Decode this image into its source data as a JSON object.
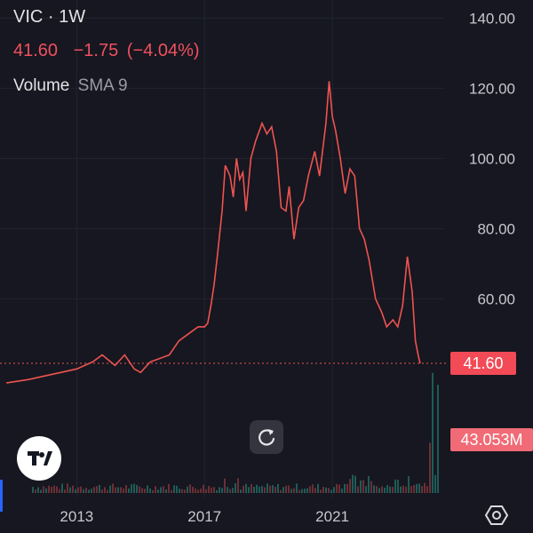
{
  "header": {
    "symbol": "VIC · 1W",
    "last": "41.60",
    "change": "−1.75",
    "change_pct": "(−4.04%)",
    "volume_label": "Volume",
    "sma_label": "SMA 9"
  },
  "price_tag": "41.60",
  "volume_tag": "43.053M",
  "colors": {
    "up": "#26a69a",
    "down": "#ef5350",
    "background": "#161720",
    "accent": "#2962ff"
  },
  "icons": {
    "logo": "tradingview-logo",
    "reset": "reset-chart-icon",
    "settings": "settings-gear-icon"
  },
  "chart_data": {
    "type": "line",
    "title": "VIC · 1W",
    "x_ticks": [
      "2013",
      "2017",
      "2021"
    ],
    "y_ticks": [
      "140.00",
      "120.00",
      "100.00",
      "80.00",
      "60.00"
    ],
    "ylim": [
      0,
      145
    ],
    "last_price": 41.6,
    "series": [
      {
        "values": [
          [
            2010.8,
            36
          ],
          [
            2011.5,
            37
          ],
          [
            2012.0,
            38
          ],
          [
            2012.5,
            39
          ],
          [
            2013.0,
            40
          ],
          [
            2013.5,
            42
          ],
          [
            2013.8,
            44
          ],
          [
            2014.2,
            41
          ],
          [
            2014.5,
            44
          ],
          [
            2014.8,
            40
          ],
          [
            2015.0,
            39
          ],
          [
            2015.3,
            42
          ],
          [
            2015.6,
            43
          ],
          [
            2015.9,
            44
          ],
          [
            2016.2,
            48
          ],
          [
            2016.5,
            50
          ],
          [
            2016.8,
            52
          ],
          [
            2017.0,
            52
          ],
          [
            2017.1,
            53
          ],
          [
            2017.2,
            58
          ],
          [
            2017.3,
            64
          ],
          [
            2017.4,
            72
          ],
          [
            2017.55,
            85
          ],
          [
            2017.65,
            98
          ],
          [
            2017.8,
            95
          ],
          [
            2017.9,
            89
          ],
          [
            2018.0,
            100
          ],
          [
            2018.1,
            94
          ],
          [
            2018.2,
            96
          ],
          [
            2018.3,
            85
          ],
          [
            2018.45,
            100
          ],
          [
            2018.6,
            105
          ],
          [
            2018.8,
            110
          ],
          [
            2018.95,
            107
          ],
          [
            2019.1,
            109
          ],
          [
            2019.25,
            102
          ],
          [
            2019.4,
            86
          ],
          [
            2019.55,
            85
          ],
          [
            2019.65,
            92
          ],
          [
            2019.8,
            77
          ],
          [
            2019.95,
            86
          ],
          [
            2020.1,
            88
          ],
          [
            2020.25,
            95
          ],
          [
            2020.45,
            102
          ],
          [
            2020.6,
            95
          ],
          [
            2020.8,
            110
          ],
          [
            2020.9,
            122
          ],
          [
            2021.0,
            112
          ],
          [
            2021.1,
            108
          ],
          [
            2021.25,
            100
          ],
          [
            2021.4,
            90
          ],
          [
            2021.55,
            97
          ],
          [
            2021.7,
            95
          ],
          [
            2021.85,
            80
          ],
          [
            2022.0,
            77
          ],
          [
            2022.15,
            71
          ],
          [
            2022.35,
            60
          ],
          [
            2022.55,
            56
          ],
          [
            2022.7,
            52
          ],
          [
            2022.9,
            54
          ],
          [
            2023.05,
            52
          ],
          [
            2023.2,
            58
          ],
          [
            2023.35,
            72
          ],
          [
            2023.5,
            62
          ],
          [
            2023.6,
            48
          ],
          [
            2023.7,
            43.35
          ],
          [
            2023.75,
            41.6
          ]
        ]
      }
    ]
  }
}
